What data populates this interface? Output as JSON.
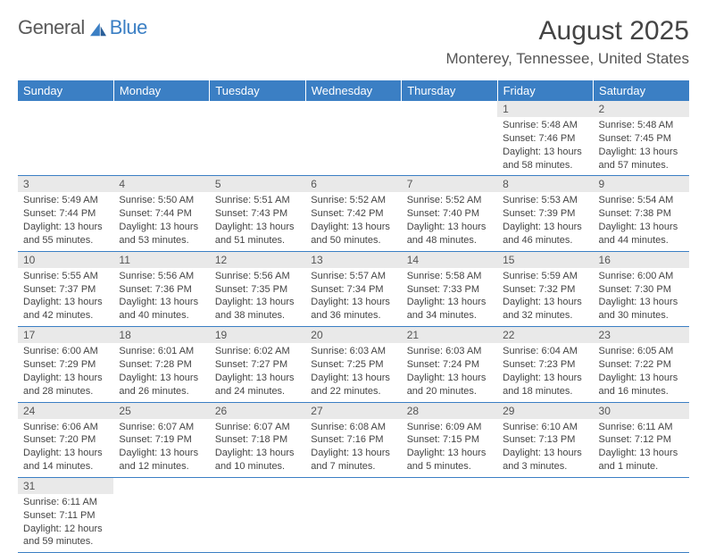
{
  "logo": {
    "text_a": "General",
    "text_b": "Blue"
  },
  "title": "August 2025",
  "location": "Monterey, Tennessee, United States",
  "colors": {
    "header_bg": "#3b7fc4",
    "header_text": "#ffffff",
    "daynum_bg": "#e9e9e9",
    "rule": "#3b7fc4",
    "body_text": "#444444",
    "title_text": "#444444"
  },
  "weekdays": [
    "Sunday",
    "Monday",
    "Tuesday",
    "Wednesday",
    "Thursday",
    "Friday",
    "Saturday"
  ],
  "weeks": [
    [
      {
        "n": "",
        "sunrise": "",
        "sunset": "",
        "daylight": ""
      },
      {
        "n": "",
        "sunrise": "",
        "sunset": "",
        "daylight": ""
      },
      {
        "n": "",
        "sunrise": "",
        "sunset": "",
        "daylight": ""
      },
      {
        "n": "",
        "sunrise": "",
        "sunset": "",
        "daylight": ""
      },
      {
        "n": "",
        "sunrise": "",
        "sunset": "",
        "daylight": ""
      },
      {
        "n": "1",
        "sunrise": "Sunrise: 5:48 AM",
        "sunset": "Sunset: 7:46 PM",
        "daylight": "Daylight: 13 hours and 58 minutes."
      },
      {
        "n": "2",
        "sunrise": "Sunrise: 5:48 AM",
        "sunset": "Sunset: 7:45 PM",
        "daylight": "Daylight: 13 hours and 57 minutes."
      }
    ],
    [
      {
        "n": "3",
        "sunrise": "Sunrise: 5:49 AM",
        "sunset": "Sunset: 7:44 PM",
        "daylight": "Daylight: 13 hours and 55 minutes."
      },
      {
        "n": "4",
        "sunrise": "Sunrise: 5:50 AM",
        "sunset": "Sunset: 7:44 PM",
        "daylight": "Daylight: 13 hours and 53 minutes."
      },
      {
        "n": "5",
        "sunrise": "Sunrise: 5:51 AM",
        "sunset": "Sunset: 7:43 PM",
        "daylight": "Daylight: 13 hours and 51 minutes."
      },
      {
        "n": "6",
        "sunrise": "Sunrise: 5:52 AM",
        "sunset": "Sunset: 7:42 PM",
        "daylight": "Daylight: 13 hours and 50 minutes."
      },
      {
        "n": "7",
        "sunrise": "Sunrise: 5:52 AM",
        "sunset": "Sunset: 7:40 PM",
        "daylight": "Daylight: 13 hours and 48 minutes."
      },
      {
        "n": "8",
        "sunrise": "Sunrise: 5:53 AM",
        "sunset": "Sunset: 7:39 PM",
        "daylight": "Daylight: 13 hours and 46 minutes."
      },
      {
        "n": "9",
        "sunrise": "Sunrise: 5:54 AM",
        "sunset": "Sunset: 7:38 PM",
        "daylight": "Daylight: 13 hours and 44 minutes."
      }
    ],
    [
      {
        "n": "10",
        "sunrise": "Sunrise: 5:55 AM",
        "sunset": "Sunset: 7:37 PM",
        "daylight": "Daylight: 13 hours and 42 minutes."
      },
      {
        "n": "11",
        "sunrise": "Sunrise: 5:56 AM",
        "sunset": "Sunset: 7:36 PM",
        "daylight": "Daylight: 13 hours and 40 minutes."
      },
      {
        "n": "12",
        "sunrise": "Sunrise: 5:56 AM",
        "sunset": "Sunset: 7:35 PM",
        "daylight": "Daylight: 13 hours and 38 minutes."
      },
      {
        "n": "13",
        "sunrise": "Sunrise: 5:57 AM",
        "sunset": "Sunset: 7:34 PM",
        "daylight": "Daylight: 13 hours and 36 minutes."
      },
      {
        "n": "14",
        "sunrise": "Sunrise: 5:58 AM",
        "sunset": "Sunset: 7:33 PM",
        "daylight": "Daylight: 13 hours and 34 minutes."
      },
      {
        "n": "15",
        "sunrise": "Sunrise: 5:59 AM",
        "sunset": "Sunset: 7:32 PM",
        "daylight": "Daylight: 13 hours and 32 minutes."
      },
      {
        "n": "16",
        "sunrise": "Sunrise: 6:00 AM",
        "sunset": "Sunset: 7:30 PM",
        "daylight": "Daylight: 13 hours and 30 minutes."
      }
    ],
    [
      {
        "n": "17",
        "sunrise": "Sunrise: 6:00 AM",
        "sunset": "Sunset: 7:29 PM",
        "daylight": "Daylight: 13 hours and 28 minutes."
      },
      {
        "n": "18",
        "sunrise": "Sunrise: 6:01 AM",
        "sunset": "Sunset: 7:28 PM",
        "daylight": "Daylight: 13 hours and 26 minutes."
      },
      {
        "n": "19",
        "sunrise": "Sunrise: 6:02 AM",
        "sunset": "Sunset: 7:27 PM",
        "daylight": "Daylight: 13 hours and 24 minutes."
      },
      {
        "n": "20",
        "sunrise": "Sunrise: 6:03 AM",
        "sunset": "Sunset: 7:25 PM",
        "daylight": "Daylight: 13 hours and 22 minutes."
      },
      {
        "n": "21",
        "sunrise": "Sunrise: 6:03 AM",
        "sunset": "Sunset: 7:24 PM",
        "daylight": "Daylight: 13 hours and 20 minutes."
      },
      {
        "n": "22",
        "sunrise": "Sunrise: 6:04 AM",
        "sunset": "Sunset: 7:23 PM",
        "daylight": "Daylight: 13 hours and 18 minutes."
      },
      {
        "n": "23",
        "sunrise": "Sunrise: 6:05 AM",
        "sunset": "Sunset: 7:22 PM",
        "daylight": "Daylight: 13 hours and 16 minutes."
      }
    ],
    [
      {
        "n": "24",
        "sunrise": "Sunrise: 6:06 AM",
        "sunset": "Sunset: 7:20 PM",
        "daylight": "Daylight: 13 hours and 14 minutes."
      },
      {
        "n": "25",
        "sunrise": "Sunrise: 6:07 AM",
        "sunset": "Sunset: 7:19 PM",
        "daylight": "Daylight: 13 hours and 12 minutes."
      },
      {
        "n": "26",
        "sunrise": "Sunrise: 6:07 AM",
        "sunset": "Sunset: 7:18 PM",
        "daylight": "Daylight: 13 hours and 10 minutes."
      },
      {
        "n": "27",
        "sunrise": "Sunrise: 6:08 AM",
        "sunset": "Sunset: 7:16 PM",
        "daylight": "Daylight: 13 hours and 7 minutes."
      },
      {
        "n": "28",
        "sunrise": "Sunrise: 6:09 AM",
        "sunset": "Sunset: 7:15 PM",
        "daylight": "Daylight: 13 hours and 5 minutes."
      },
      {
        "n": "29",
        "sunrise": "Sunrise: 6:10 AM",
        "sunset": "Sunset: 7:13 PM",
        "daylight": "Daylight: 13 hours and 3 minutes."
      },
      {
        "n": "30",
        "sunrise": "Sunrise: 6:11 AM",
        "sunset": "Sunset: 7:12 PM",
        "daylight": "Daylight: 13 hours and 1 minute."
      }
    ],
    [
      {
        "n": "31",
        "sunrise": "Sunrise: 6:11 AM",
        "sunset": "Sunset: 7:11 PM",
        "daylight": "Daylight: 12 hours and 59 minutes."
      },
      {
        "n": "",
        "sunrise": "",
        "sunset": "",
        "daylight": ""
      },
      {
        "n": "",
        "sunrise": "",
        "sunset": "",
        "daylight": ""
      },
      {
        "n": "",
        "sunrise": "",
        "sunset": "",
        "daylight": ""
      },
      {
        "n": "",
        "sunrise": "",
        "sunset": "",
        "daylight": ""
      },
      {
        "n": "",
        "sunrise": "",
        "sunset": "",
        "daylight": ""
      },
      {
        "n": "",
        "sunrise": "",
        "sunset": "",
        "daylight": ""
      }
    ]
  ]
}
